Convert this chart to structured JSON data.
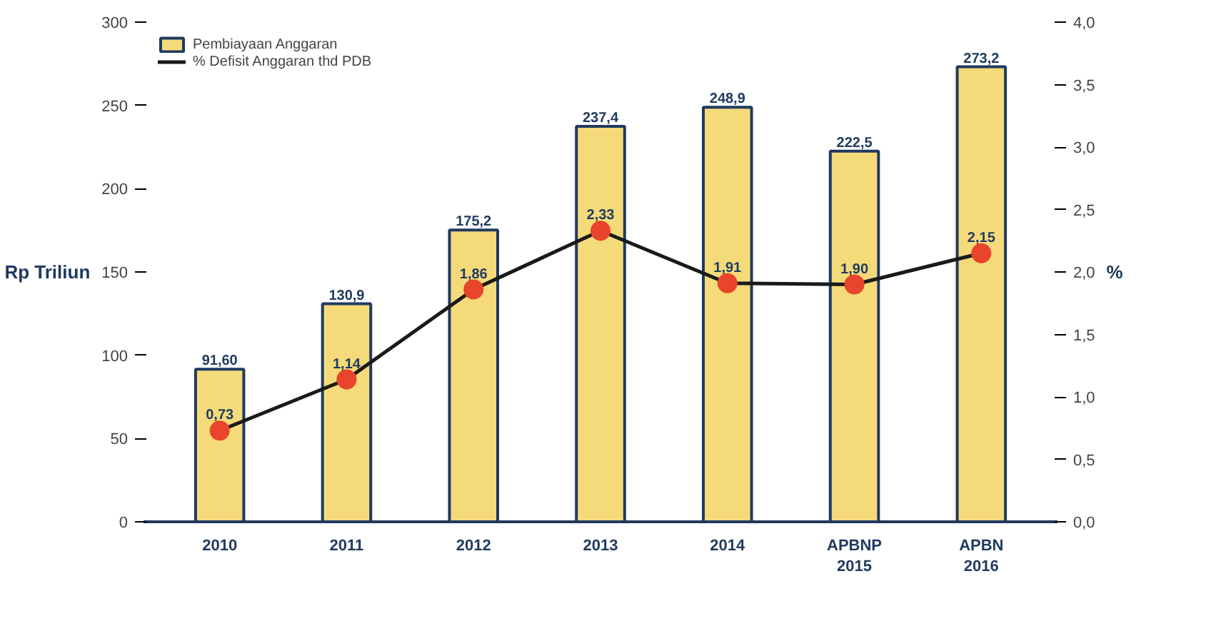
{
  "chart_data": {
    "type": "bar",
    "categories": [
      "2010",
      "2011",
      "2012",
      "2013",
      "2014",
      "APBNP\n2015",
      "APBN\n2016"
    ],
    "ylabel": "Rp Triliun",
    "y2label": "%",
    "ylim": [
      0,
      300
    ],
    "yticks": [
      0,
      50,
      100,
      150,
      200,
      250,
      300
    ],
    "y2lim": [
      0,
      4
    ],
    "y2ticks": [
      {
        "value": 0,
        "label": "0,0"
      },
      {
        "value": 0.5,
        "label": "0,5"
      },
      {
        "value": 1,
        "label": "1,0"
      },
      {
        "value": 1.5,
        "label": "1,5"
      },
      {
        "value": 2,
        "label": "2,0"
      },
      {
        "value": 2.5,
        "label": "2,5"
      },
      {
        "value": 3,
        "label": "3,0"
      },
      {
        "value": 3.5,
        "label": "3,5"
      },
      {
        "value": 4,
        "label": "4,0"
      }
    ],
    "series": [
      {
        "name": "Pembiayaan Anggaran",
        "color": "#f5da7a",
        "values": [
          91.6,
          130.9,
          175.2,
          237.4,
          248.9,
          222.5,
          273.2
        ],
        "value_labels": [
          "91,60",
          "130,9",
          "175,2",
          "237,4",
          "248,9",
          "222,5",
          "273,2"
        ]
      },
      {
        "name": "% Defisit Anggaran thd PDB",
        "type": "line",
        "axis": "y2",
        "color": "#1a1a1a",
        "values": [
          0.73,
          1.14,
          1.86,
          2.33,
          1.91,
          1.9,
          2.15
        ],
        "value_labels": [
          "0,73",
          "1,14",
          "1,86",
          "2,33",
          "1,91",
          "1,90",
          "2,15"
        ]
      }
    ],
    "marker": "circle",
    "grid": false,
    "legend": "top left"
  }
}
